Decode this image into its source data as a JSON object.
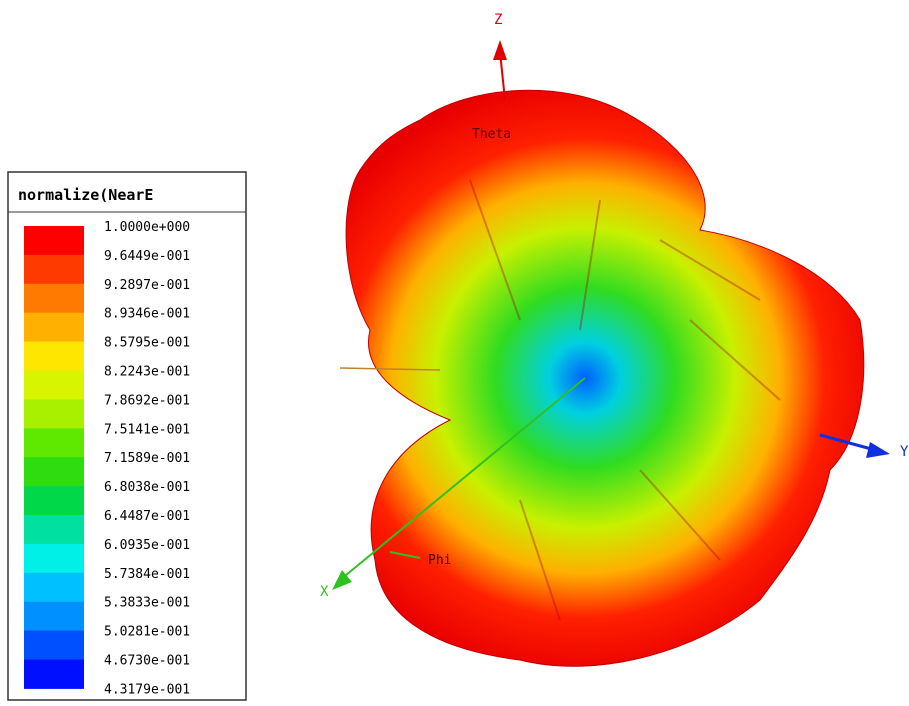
{
  "legend": {
    "title": "normalize(NearE",
    "labels": [
      "1.0000e+000",
      "9.6449e-001",
      "9.2897e-001",
      "8.9346e-001",
      "8.5795e-001",
      "8.2243e-001",
      "7.8692e-001",
      "7.5141e-001",
      "7.1589e-001",
      "6.8038e-001",
      "6.4487e-001",
      "6.0935e-001",
      "5.7384e-001",
      "5.3833e-001",
      "5.0281e-001",
      "4.6730e-001",
      "4.3179e-001"
    ],
    "colors": [
      "#ff0000",
      "#ff3a00",
      "#ff7a00",
      "#ffb000",
      "#ffe600",
      "#d8f500",
      "#a8f000",
      "#5fe800",
      "#2fdc10",
      "#00d84a",
      "#00e0a0",
      "#00f0e8",
      "#00c0ff",
      "#0090ff",
      "#0050ff",
      "#0010ff"
    ]
  },
  "axes": {
    "z": "Z",
    "y": "Y",
    "x": "X",
    "theta": "Theta",
    "phi": "Phi"
  }
}
